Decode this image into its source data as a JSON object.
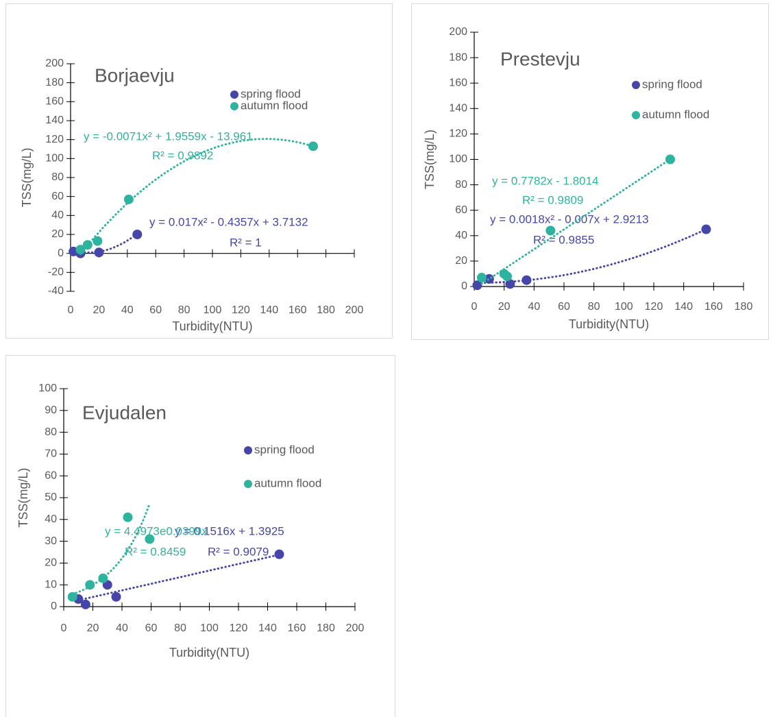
{
  "chart_data": [
    {
      "type": "scatter",
      "title": "Borjaevju",
      "x_label": "Turbidity(NTU)",
      "y_label": "TSS(mg/L)",
      "xlim": [
        0,
        200
      ],
      "xticks": [
        0,
        20,
        40,
        60,
        80,
        100,
        120,
        140,
        160,
        180,
        200
      ],
      "ylim": [
        -40,
        200
      ],
      "yticks": [
        -40,
        -20,
        0,
        20,
        40,
        60,
        80,
        100,
        120,
        140,
        160,
        180,
        200
      ],
      "series": [
        {
          "name": "spring flood",
          "color": "#4646a8",
          "x": [
            2,
            7,
            20,
            47
          ],
          "values": [
            2,
            0,
            1,
            20
          ],
          "trendline": {
            "kind": "poly2",
            "coefficients": [
              0.017,
              -0.4357,
              3.7132
            ],
            "equation": "y = 0.017x² - 0.4357x + 3.7132",
            "r2": "R² = 1"
          }
        },
        {
          "name": "autumn flood",
          "color": "#2eb39e",
          "x": [
            7,
            12,
            19,
            41,
            171
          ],
          "values": [
            4,
            9,
            13,
            57,
            113
          ],
          "trendline": {
            "kind": "poly2",
            "coefficients": [
              -0.0071,
              1.9559,
              -13.961
            ],
            "equation": "y = -0.0071x² + 1.9559x - 13.961",
            "r2": "R² = 0.9892"
          }
        }
      ]
    },
    {
      "type": "scatter",
      "title": "Prestevju",
      "x_label": "Turbidity(NTU)",
      "y_label": "TSS(mg/L)",
      "xlim": [
        0,
        180
      ],
      "xticks": [
        0,
        20,
        40,
        60,
        80,
        100,
        120,
        140,
        160,
        180
      ],
      "ylim": [
        0,
        200
      ],
      "yticks": [
        0,
        20,
        40,
        60,
        80,
        100,
        120,
        140,
        160,
        180,
        200
      ],
      "series": [
        {
          "name": "spring flood",
          "color": "#4646a8",
          "x": [
            2,
            10,
            24,
            35,
            155
          ],
          "values": [
            1,
            6,
            2,
            5,
            45
          ],
          "trendline": {
            "kind": "poly2",
            "coefficients": [
              0.0018,
              -0.007,
              2.9213
            ],
            "equation": "y = 0.0018x² - 0.007x + 2.9213",
            "r2": "R² = 0.9855"
          }
        },
        {
          "name": "autumn flood",
          "color": "#2eb39e",
          "x": [
            5,
            20,
            22,
            51,
            131
          ],
          "values": [
            7,
            10,
            8,
            44,
            100
          ],
          "trendline": {
            "kind": "linear",
            "coefficients": [
              0.7782,
              -1.8014
            ],
            "equation": "y = 0.7782x - 1.8014",
            "r2": "R² = 0.9809"
          }
        }
      ]
    },
    {
      "type": "scatter",
      "title": "Evjudalen",
      "x_label": "Turbidity(NTU)",
      "y_label": "TSS(mg/L)",
      "xlim": [
        0,
        200
      ],
      "xticks": [
        0,
        20,
        40,
        60,
        80,
        100,
        120,
        140,
        160,
        180,
        200
      ],
      "ylim": [
        0,
        100
      ],
      "yticks": [
        0,
        10,
        20,
        30,
        40,
        50,
        60,
        70,
        80,
        90,
        100
      ],
      "series": [
        {
          "name": "spring flood",
          "color": "#4646a8",
          "x": [
            10,
            15,
            30,
            36,
            148
          ],
          "values": [
            3.5,
            1,
            10,
            4.5,
            24
          ],
          "trendline": {
            "kind": "linear",
            "coefficients": [
              0.1516,
              1.3925
            ],
            "equation": "y = 0.1516x + 1.3925",
            "r2": "R² = 0.9079"
          }
        },
        {
          "name": "autumn flood",
          "color": "#2eb39e",
          "x": [
            6,
            18,
            27,
            44,
            59
          ],
          "values": [
            4.5,
            10,
            13,
            41,
            31
          ],
          "trendline": {
            "kind": "exp",
            "coefficients": [
              4.4973,
              0.0399
            ],
            "equation": "y = 4.4973e0.0399x",
            "r2": "R² = 0.8459"
          }
        }
      ]
    }
  ]
}
